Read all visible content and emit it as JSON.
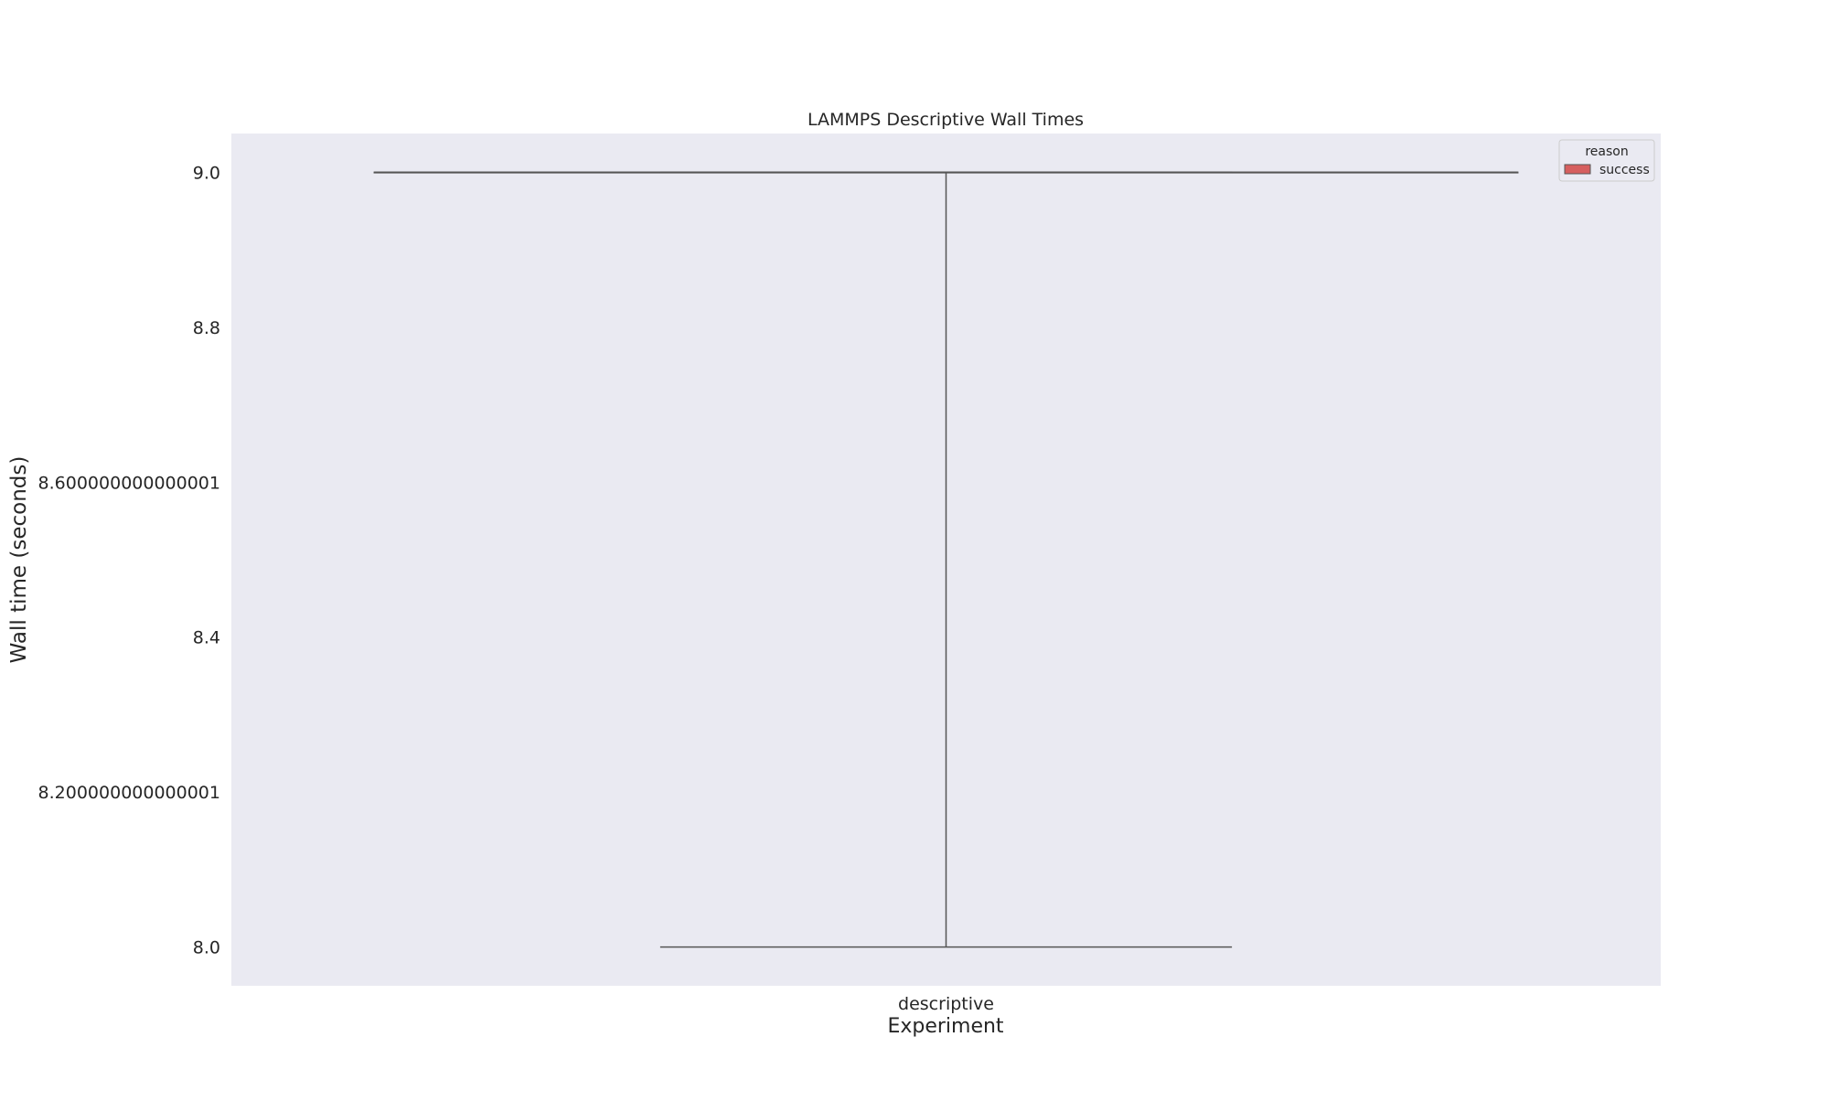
{
  "chart_data": {
    "type": "box",
    "title": "LAMMPS Descriptive Wall Times",
    "xlabel": "Experiment",
    "ylabel": "Wall time (seconds)",
    "categories": [
      "descriptive"
    ],
    "ylim": [
      7.95,
      9.05
    ],
    "y_ticks": [
      {
        "value": 8.0,
        "label": "8.0"
      },
      {
        "value": 8.2,
        "label": "8.200000000000001"
      },
      {
        "value": 8.4,
        "label": "8.4"
      },
      {
        "value": 8.6,
        "label": "8.600000000000001"
      },
      {
        "value": 8.8,
        "label": "8.8"
      },
      {
        "value": 9.0,
        "label": "9.0"
      }
    ],
    "grid": false,
    "series": [
      {
        "name": "success",
        "color": "#d65f5f",
        "boxes": [
          {
            "category": "descriptive",
            "min": 8.0,
            "q1": 9.0,
            "median": 9.0,
            "q3": 9.0,
            "max": 9.0
          }
        ]
      }
    ],
    "legend": {
      "title": "reason",
      "position": "top-right"
    },
    "colors": {
      "plot_background": "#eaeaf2",
      "line": "#555555"
    }
  }
}
